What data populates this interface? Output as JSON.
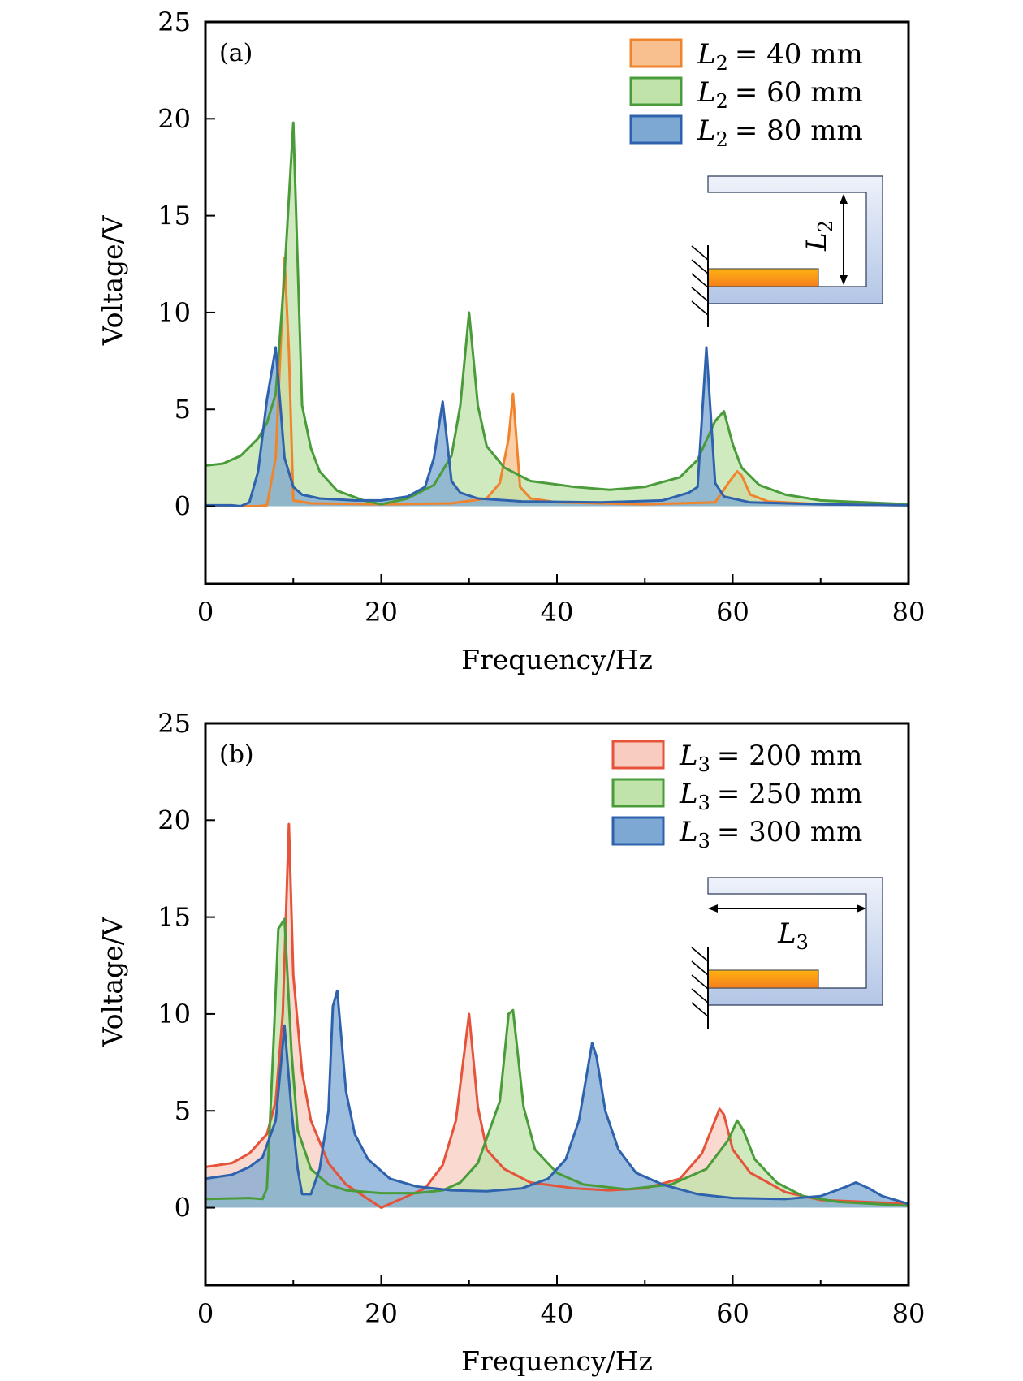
{
  "chart_data": [
    {
      "type": "area",
      "panel_label": "(a)",
      "xlabel": "Frequency/Hz",
      "ylabel": "Voltage/V",
      "xlim": [
        0,
        80
      ],
      "ylim": [
        -4,
        25
      ],
      "xticks": [
        0,
        20,
        40,
        60,
        80
      ],
      "xminor": [
        10,
        30,
        50,
        70
      ],
      "yticks": [
        0,
        5,
        10,
        15,
        20,
        25
      ],
      "legend_position": "top-right",
      "inset": {
        "dimension_label": "L",
        "dimension_subscript": "2",
        "orientation": "vertical"
      },
      "series": [
        {
          "name": "L2 = 40 mm",
          "var": "L",
          "sub": "2",
          "value_text": "= 40 mm",
          "line_color": "#f0842c",
          "fill_color": "#f8c08e",
          "x": [
            0,
            6,
            7,
            8,
            9,
            9.5,
            10,
            12,
            20,
            28,
            32,
            33.5,
            34.5,
            35,
            35.8,
            37,
            40,
            50,
            58,
            59.5,
            60.5,
            61,
            62,
            64,
            70,
            80
          ],
          "y": [
            0,
            0,
            0.05,
            2.5,
            12.8,
            8,
            0.3,
            0.15,
            0.1,
            0.15,
            0.4,
            1.2,
            3.5,
            5.8,
            1.0,
            0.4,
            0.2,
            0.1,
            0.2,
            1.2,
            1.8,
            1.6,
            0.6,
            0.25,
            0.1,
            0.05
          ]
        },
        {
          "name": "L2 = 60 mm",
          "var": "L",
          "sub": "2",
          "value_text": "= 60 mm",
          "line_color": "#4a9c3b",
          "fill_color": "#bfe3a8",
          "x": [
            0,
            2,
            4,
            6,
            7,
            8,
            9,
            10,
            11,
            12,
            13,
            15,
            18,
            20,
            23,
            26,
            28,
            29,
            30,
            31,
            32,
            34,
            37,
            42,
            46,
            50,
            54,
            56,
            58,
            59,
            60,
            61,
            63,
            66,
            70,
            80
          ],
          "y": [
            2.1,
            2.2,
            2.6,
            3.5,
            4.3,
            5.8,
            12,
            19.8,
            5.2,
            3.0,
            1.8,
            0.8,
            0.3,
            0.1,
            0.4,
            1.1,
            2.6,
            5.2,
            10,
            5.2,
            3.1,
            2.0,
            1.3,
            1.0,
            0.85,
            1.0,
            1.5,
            2.4,
            4.4,
            4.9,
            3.2,
            2.0,
            1.1,
            0.6,
            0.3,
            0.1
          ]
        },
        {
          "name": "L2 = 80 mm",
          "var": "L",
          "sub": "2",
          "value_text": "= 80 mm",
          "line_color": "#2f62ad",
          "fill_color": "#7ea8d4",
          "x": [
            0,
            3,
            4,
            5,
            6,
            7,
            8,
            9,
            10,
            11,
            13,
            17,
            20,
            23,
            25,
            26,
            27,
            28,
            29,
            31,
            36,
            45,
            52,
            55,
            56,
            57,
            58,
            59,
            62,
            70,
            80
          ],
          "y": [
            0.05,
            0.05,
            0,
            0.2,
            1.8,
            5.5,
            8.2,
            2.5,
            1.0,
            0.6,
            0.4,
            0.3,
            0.3,
            0.5,
            1.0,
            2.5,
            5.4,
            1.3,
            0.7,
            0.4,
            0.25,
            0.2,
            0.3,
            0.7,
            1.0,
            8.2,
            1.2,
            0.5,
            0.2,
            0.1,
            0.05
          ]
        }
      ]
    },
    {
      "type": "area",
      "panel_label": "(b)",
      "xlabel": "Frequency/Hz",
      "ylabel": "Voltage/V",
      "xlim": [
        0,
        80
      ],
      "ylim": [
        -4,
        25
      ],
      "xticks": [
        0,
        20,
        40,
        60,
        80
      ],
      "xminor": [
        10,
        30,
        50,
        70
      ],
      "yticks": [
        0,
        5,
        10,
        15,
        20,
        25
      ],
      "legend_position": "top-right",
      "inset": {
        "dimension_label": "L",
        "dimension_subscript": "3",
        "orientation": "horizontal"
      },
      "series": [
        {
          "name": "L3 = 200 mm",
          "var": "L",
          "sub": "3",
          "value_text": "= 200 mm",
          "line_color": "#e5533a",
          "fill_color": "#f8cdc0",
          "x": [
            0,
            3,
            5,
            7,
            8,
            8.8,
            9.5,
            10,
            11,
            12,
            14,
            16,
            18,
            20,
            22,
            25,
            27,
            28.5,
            30,
            31,
            32,
            34,
            37,
            42,
            46,
            50,
            54,
            56.5,
            58.5,
            59,
            60,
            62,
            66,
            70,
            80
          ],
          "y": [
            2.1,
            2.3,
            2.8,
            3.8,
            5.5,
            10,
            19.8,
            12,
            7,
            4.5,
            2.3,
            1.2,
            0.6,
            0,
            0.4,
            1.0,
            2.2,
            4.5,
            10,
            5.2,
            3.0,
            2.0,
            1.3,
            1.0,
            0.9,
            1.0,
            1.5,
            2.8,
            5.1,
            4.8,
            3.0,
            1.8,
            0.8,
            0.4,
            0.2
          ]
        },
        {
          "name": "L3 = 250 mm",
          "var": "L",
          "sub": "3",
          "value_text": "= 250 mm",
          "line_color": "#4a9c3b",
          "fill_color": "#bfe3a8",
          "x": [
            0,
            5,
            6.5,
            7,
            7.8,
            8.3,
            9,
            9.8,
            10.5,
            12,
            14,
            16,
            20,
            24,
            27,
            29,
            31,
            33.5,
            34.5,
            35,
            36.2,
            37.5,
            40,
            43,
            48,
            53,
            57,
            59.5,
            60.5,
            61.2,
            62.5,
            65,
            68,
            72,
            80
          ],
          "y": [
            0.45,
            0.5,
            0.45,
            1.0,
            9,
            14.4,
            14.9,
            8,
            4,
            2.0,
            1.2,
            0.9,
            0.75,
            0.75,
            0.9,
            1.3,
            2.3,
            5.5,
            10,
            10.2,
            5.2,
            3.0,
            1.8,
            1.2,
            0.95,
            1.2,
            2.0,
            3.5,
            4.5,
            4.0,
            2.5,
            1.3,
            0.6,
            0.3,
            0.1
          ]
        },
        {
          "name": "L3 = 300 mm",
          "var": "L",
          "sub": "3",
          "value_text": "= 300 mm",
          "line_color": "#2f62ad",
          "fill_color": "#7ea8d4",
          "x": [
            0,
            3,
            5,
            6.5,
            8,
            9,
            9.8,
            10.5,
            11,
            12,
            13,
            14,
            14.5,
            15,
            16,
            17,
            18.5,
            21,
            24,
            28,
            32,
            36,
            39,
            41,
            42.5,
            44,
            44.5,
            45.5,
            47,
            49,
            52,
            56,
            60,
            66,
            70,
            73,
            74,
            75.5,
            77,
            80
          ],
          "y": [
            1.5,
            1.7,
            2.1,
            2.6,
            4.5,
            9.4,
            5,
            2,
            0.7,
            0.7,
            2,
            5,
            10.4,
            11.2,
            6,
            3.8,
            2.5,
            1.5,
            1.1,
            0.9,
            0.85,
            1.0,
            1.5,
            2.5,
            4.5,
            8.5,
            7.8,
            5,
            3,
            1.8,
            1.2,
            0.7,
            0.5,
            0.45,
            0.6,
            1.1,
            1.3,
            1.0,
            0.6,
            0.2
          ]
        }
      ]
    }
  ]
}
